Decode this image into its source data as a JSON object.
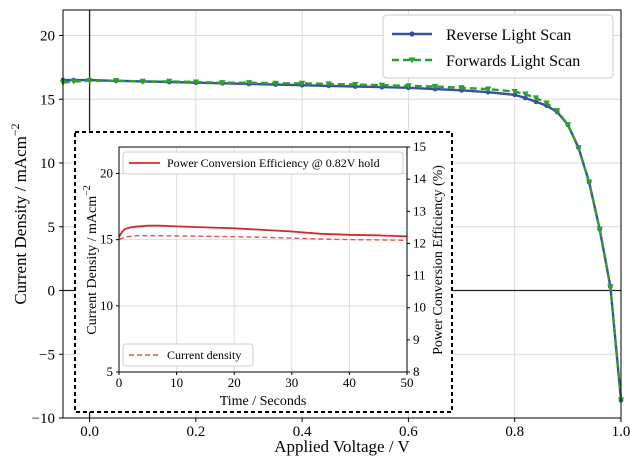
{
  "chart_data": [
    {
      "type": "line",
      "xlabel": "Applied Voltage / V",
      "ylabel": "Current Density / mAcm",
      "ylabel_sup": "−2",
      "xlim": [
        -0.05,
        1.0
      ],
      "ylim": [
        -10,
        22
      ],
      "x_ticks": [
        0.0,
        0.2,
        0.4,
        0.6,
        0.8,
        1.0
      ],
      "x_tick_labels": [
        "0.0",
        "0.2",
        "0.4",
        "0.6",
        "0.8",
        "1.0"
      ],
      "y_ticks": [
        -10,
        -5,
        0,
        5,
        10,
        15,
        20
      ],
      "y_tick_labels": [
        "−10",
        "−5",
        "0",
        "5",
        "10",
        "15",
        "20"
      ],
      "grid": true,
      "legend_position": "top-right",
      "series": [
        {
          "name": "Reverse Light Scan",
          "color": "#3a4fa0",
          "style": "solid",
          "marker": "dot",
          "x": [
            -0.05,
            -0.03,
            0.0,
            0.05,
            0.1,
            0.15,
            0.2,
            0.25,
            0.3,
            0.35,
            0.4,
            0.45,
            0.5,
            0.55,
            0.6,
            0.65,
            0.7,
            0.75,
            0.8,
            0.82,
            0.84,
            0.86,
            0.88,
            0.9,
            0.92,
            0.94,
            0.96,
            0.98,
            1.0
          ],
          "y": [
            16.5,
            16.5,
            16.5,
            16.45,
            16.4,
            16.35,
            16.3,
            16.25,
            16.2,
            16.15,
            16.1,
            16.05,
            16.0,
            15.95,
            15.9,
            15.8,
            15.7,
            15.55,
            15.35,
            15.1,
            14.8,
            14.5,
            14.0,
            13.0,
            11.2,
            8.5,
            4.8,
            0.3,
            -8.6
          ]
        },
        {
          "name": "Forwards Light Scan",
          "color": "#2ca02c",
          "style": "dashed",
          "marker": "triangle-down",
          "x": [
            -0.05,
            -0.03,
            0.0,
            0.05,
            0.1,
            0.15,
            0.2,
            0.25,
            0.3,
            0.35,
            0.4,
            0.45,
            0.5,
            0.55,
            0.6,
            0.65,
            0.7,
            0.75,
            0.8,
            0.82,
            0.84,
            0.86,
            0.88,
            0.9,
            0.92,
            0.94,
            0.96,
            0.98,
            1.0
          ],
          "y": [
            16.3,
            16.4,
            16.45,
            16.45,
            16.4,
            16.4,
            16.35,
            16.3,
            16.3,
            16.25,
            16.25,
            16.2,
            16.15,
            16.1,
            16.05,
            16.0,
            15.9,
            15.8,
            15.6,
            15.4,
            15.1,
            14.7,
            14.1,
            13.0,
            11.2,
            8.5,
            4.8,
            0.3,
            -8.6
          ]
        }
      ]
    },
    {
      "type": "line",
      "xlabel": "Time / Seconds",
      "ylabel": "Current Density / mAcm",
      "ylabel_sup": "−2",
      "y2label": "Power Conversion Efficiency (%)",
      "xlim": [
        0,
        50
      ],
      "ylim": [
        5,
        22
      ],
      "y2lim": [
        8,
        15
      ],
      "x_ticks": [
        0,
        10,
        20,
        30,
        40,
        50
      ],
      "x_tick_labels": [
        "0",
        "10",
        "20",
        "30",
        "40",
        "50"
      ],
      "y_ticks": [
        5,
        10,
        15,
        20
      ],
      "y_tick_labels": [
        "5",
        "10",
        "15",
        "20"
      ],
      "y2_ticks": [
        8,
        9,
        10,
        11,
        12,
        13,
        14,
        15
      ],
      "y2_tick_labels": [
        "8",
        "9",
        "10",
        "11",
        "12",
        "13",
        "14",
        "15"
      ],
      "grid": true,
      "series": [
        {
          "name": "Power Conversion Efficiency @ 0.82V hold",
          "axis": "right",
          "color": "#d62728",
          "style": "solid",
          "legend_position": "top-left",
          "x": [
            0,
            0.5,
            1,
            2,
            3,
            5,
            7,
            10,
            15,
            20,
            25,
            30,
            35,
            40,
            45,
            50
          ],
          "y": [
            12.2,
            12.35,
            12.45,
            12.5,
            12.52,
            12.55,
            12.55,
            12.53,
            12.5,
            12.47,
            12.42,
            12.37,
            12.3,
            12.27,
            12.25,
            12.22
          ]
        },
        {
          "name": "Current density",
          "axis": "left",
          "color": "#e05555",
          "style": "dashed",
          "legend_position": "bottom-left",
          "x": [
            0,
            0.5,
            1,
            2,
            3,
            5,
            7,
            10,
            15,
            20,
            25,
            30,
            35,
            40,
            45,
            50
          ],
          "y": [
            15.0,
            15.1,
            15.2,
            15.25,
            15.3,
            15.3,
            15.3,
            15.28,
            15.25,
            15.22,
            15.18,
            15.12,
            15.05,
            15.0,
            14.98,
            14.95
          ]
        }
      ]
    }
  ]
}
